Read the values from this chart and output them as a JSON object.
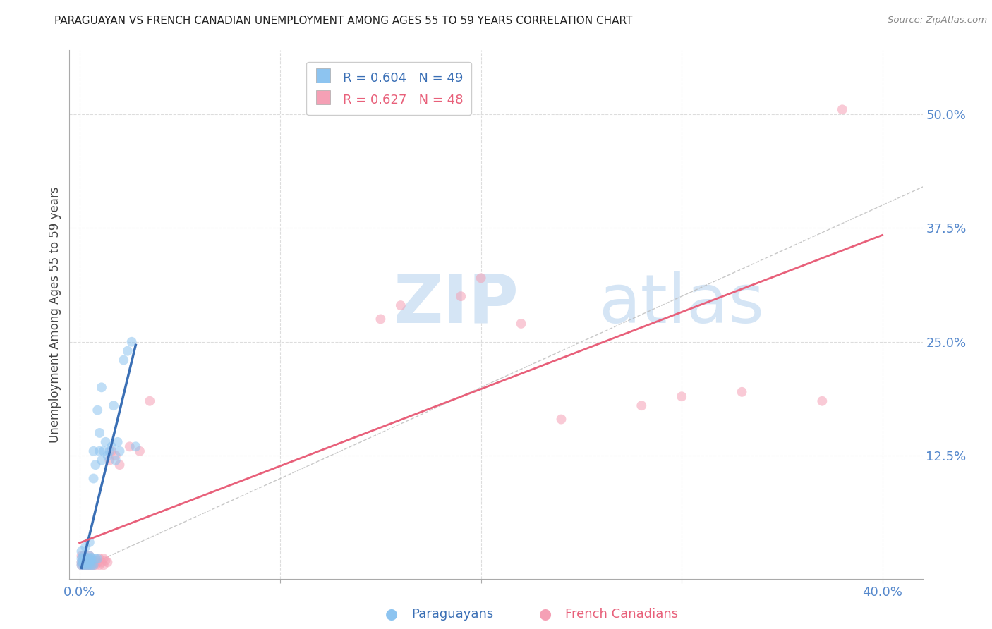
{
  "title": "PARAGUAYAN VS FRENCH CANADIAN UNEMPLOYMENT AMONG AGES 55 TO 59 YEARS CORRELATION CHART",
  "source": "Source: ZipAtlas.com",
  "ylabel": "Unemployment Among Ages 55 to 59 years",
  "x_tick_labels": [
    "0.0%",
    "",
    "",
    "",
    "40.0%"
  ],
  "x_tick_values": [
    0.0,
    0.1,
    0.2,
    0.3,
    0.4
  ],
  "y_tick_labels_right": [
    "12.5%",
    "25.0%",
    "37.5%",
    "50.0%"
  ],
  "y_tick_values_right": [
    0.125,
    0.25,
    0.375,
    0.5
  ],
  "xlim": [
    -0.005,
    0.42
  ],
  "ylim": [
    -0.01,
    0.57
  ],
  "paraguayan_color": "#8DC4F0",
  "french_canadian_color": "#F5A0B5",
  "paraguayan_line_color": "#3A6FB5",
  "french_canadian_line_color": "#E8607A",
  "legend_paraguayan_label": "R = 0.604   N = 49",
  "legend_french_label": "R = 0.627   N = 48",
  "watermark_text": "ZIPatlas",
  "watermark_color": "#D5E5F5",
  "diag_line_color": "#BBBBBB",
  "grid_color": "#DDDDDD",
  "bg_color": "#FFFFFF",
  "dot_size": 100,
  "dot_alpha": 0.55,
  "title_color": "#222222",
  "axis_label_color": "#444444",
  "tick_color": "#5588CC",
  "tick_fontsize": 13,
  "title_fontsize": 11.0,
  "ylabel_fontsize": 12,
  "legend_fontsize": 13,
  "paraguayan_x": [
    0.001,
    0.001,
    0.001,
    0.001,
    0.002,
    0.002,
    0.002,
    0.002,
    0.002,
    0.003,
    0.003,
    0.003,
    0.003,
    0.004,
    0.004,
    0.004,
    0.005,
    0.005,
    0.005,
    0.005,
    0.005,
    0.005,
    0.006,
    0.006,
    0.006,
    0.007,
    0.007,
    0.007,
    0.008,
    0.008,
    0.009,
    0.009,
    0.01,
    0.01,
    0.011,
    0.011,
    0.012,
    0.013,
    0.014,
    0.015,
    0.016,
    0.017,
    0.018,
    0.019,
    0.02,
    0.022,
    0.024,
    0.026,
    0.028
  ],
  "paraguayan_y": [
    0.005,
    0.008,
    0.012,
    0.02,
    0.005,
    0.008,
    0.01,
    0.013,
    0.015,
    0.005,
    0.008,
    0.012,
    0.025,
    0.005,
    0.01,
    0.013,
    0.005,
    0.008,
    0.01,
    0.012,
    0.015,
    0.03,
    0.005,
    0.01,
    0.013,
    0.005,
    0.1,
    0.13,
    0.012,
    0.115,
    0.012,
    0.175,
    0.13,
    0.15,
    0.12,
    0.2,
    0.13,
    0.14,
    0.125,
    0.13,
    0.135,
    0.18,
    0.12,
    0.14,
    0.13,
    0.23,
    0.24,
    0.25,
    0.135
  ],
  "french_canadian_x": [
    0.001,
    0.001,
    0.001,
    0.002,
    0.002,
    0.002,
    0.002,
    0.003,
    0.003,
    0.003,
    0.004,
    0.004,
    0.004,
    0.005,
    0.005,
    0.005,
    0.006,
    0.006,
    0.007,
    0.007,
    0.008,
    0.008,
    0.009,
    0.01,
    0.01,
    0.011,
    0.012,
    0.012,
    0.013,
    0.014,
    0.015,
    0.016,
    0.018,
    0.02,
    0.025,
    0.03,
    0.035,
    0.15,
    0.16,
    0.19,
    0.2,
    0.22,
    0.24,
    0.28,
    0.3,
    0.33,
    0.37,
    0.38
  ],
  "french_canadian_y": [
    0.005,
    0.008,
    0.015,
    0.005,
    0.008,
    0.01,
    0.015,
    0.005,
    0.008,
    0.012,
    0.005,
    0.008,
    0.012,
    0.005,
    0.01,
    0.015,
    0.005,
    0.01,
    0.005,
    0.008,
    0.005,
    0.01,
    0.008,
    0.005,
    0.012,
    0.008,
    0.005,
    0.012,
    0.01,
    0.008,
    0.12,
    0.13,
    0.125,
    0.115,
    0.135,
    0.13,
    0.185,
    0.275,
    0.29,
    0.3,
    0.32,
    0.27,
    0.165,
    0.18,
    0.19,
    0.195,
    0.185,
    0.505
  ],
  "par_line_x0": 0.001,
  "par_line_x1": 0.028,
  "fc_line_x0": 0.0,
  "fc_line_x1": 0.4
}
